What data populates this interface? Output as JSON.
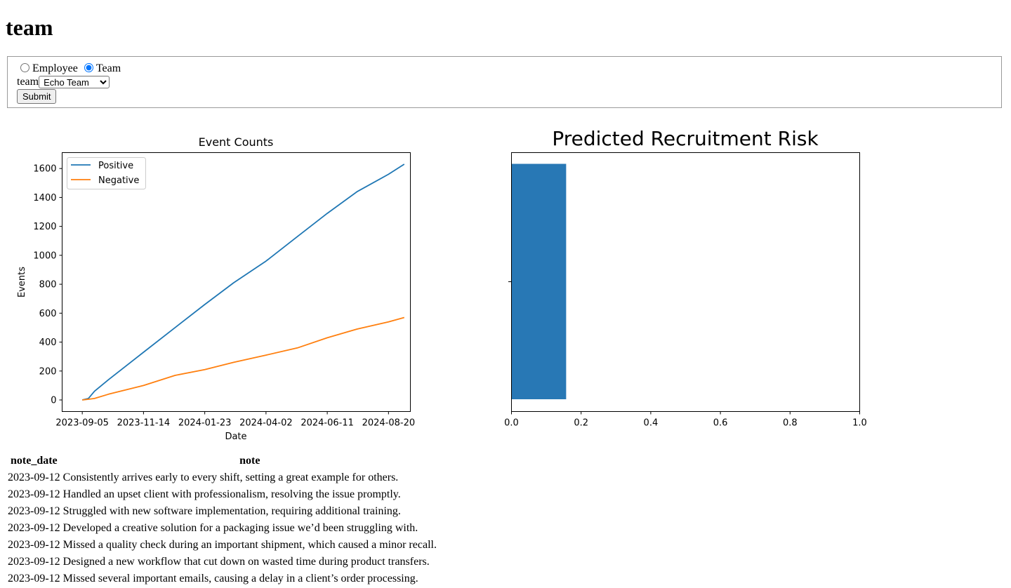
{
  "page_title": "team",
  "form": {
    "radio_employee_label": "Employee",
    "radio_team_label": "Team",
    "selected_mode": "Team",
    "team_label": "team",
    "team_selected": "Echo Team",
    "submit_label": "Submit"
  },
  "chart_data": [
    {
      "type": "line",
      "title": "Event Counts",
      "xlabel": "Date",
      "ylabel": "Events",
      "xlim": [
        "2023-08-13",
        "2024-09-14"
      ],
      "ylim": [
        -80,
        1710
      ],
      "x_ticks": [
        "2023-09-05",
        "2023-11-14",
        "2024-01-23",
        "2024-04-02",
        "2024-06-11",
        "2024-08-20"
      ],
      "y_ticks": [
        0,
        200,
        400,
        600,
        800,
        1000,
        1200,
        1400,
        1600
      ],
      "legend_position": "upper-left",
      "grid": false,
      "x": [
        "2023-09-05",
        "2023-09-12",
        "2023-09-19",
        "2023-10-05",
        "2023-11-14",
        "2023-12-20",
        "2024-01-23",
        "2024-02-25",
        "2024-04-02",
        "2024-05-08",
        "2024-06-11",
        "2024-07-15",
        "2024-08-20",
        "2024-09-07"
      ],
      "series": [
        {
          "name": "Positive",
          "color": "#1f77b4",
          "values": [
            0,
            10,
            60,
            140,
            330,
            500,
            660,
            810,
            960,
            1130,
            1290,
            1440,
            1560,
            1630
          ]
        },
        {
          "name": "Negative",
          "color": "#ff7f0e",
          "values": [
            0,
            5,
            10,
            40,
            100,
            170,
            210,
            260,
            310,
            360,
            430,
            490,
            540,
            570
          ]
        }
      ]
    },
    {
      "type": "bar",
      "orientation": "horizontal",
      "title": "Predicted Recruitment Risk",
      "categories": [
        ""
      ],
      "values": [
        0.157
      ],
      "xlim": [
        0,
        1
      ],
      "x_ticks": [
        "0.0",
        "0.2",
        "0.4",
        "0.6",
        "0.8",
        "1.0"
      ],
      "color": "#2878b5"
    }
  ],
  "notes_table": {
    "columns": [
      "note_date",
      "note"
    ],
    "rows": [
      [
        "2023-09-12",
        "Consistently arrives early to every shift, setting a great example for others."
      ],
      [
        "2023-09-12",
        "Handled an upset client with professionalism, resolving the issue promptly."
      ],
      [
        "2023-09-12",
        "Struggled with new software implementation, requiring additional training."
      ],
      [
        "2023-09-12",
        "Developed a creative solution for a packaging issue we’d been struggling with."
      ],
      [
        "2023-09-12",
        "Missed a quality check during an important shipment, which caused a minor recall."
      ],
      [
        "2023-09-12",
        "Designed a new workflow that cut down on wasted time during product transfers."
      ],
      [
        "2023-09-12",
        "Missed several important emails, causing a delay in a client’s order processing."
      ]
    ]
  }
}
